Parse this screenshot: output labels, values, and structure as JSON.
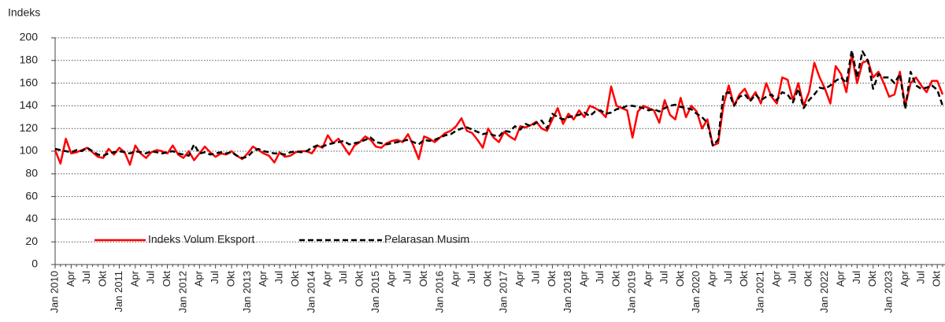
{
  "chart_data": {
    "type": "line",
    "y_label": "Indeks",
    "categories": [
      "Jan 2010",
      null,
      null,
      "Apr",
      null,
      null,
      "Jul",
      null,
      null,
      "Okt",
      null,
      null,
      "Jan 2011",
      null,
      null,
      "Apr",
      null,
      null,
      "Jul",
      null,
      null,
      "Okt",
      null,
      null,
      "Jan 2012",
      null,
      null,
      "Apr",
      null,
      null,
      "Jul",
      null,
      null,
      "Okt",
      null,
      null,
      "Jan 2013",
      null,
      null,
      "Apr",
      null,
      null,
      "Jul",
      null,
      null,
      "Okt",
      null,
      null,
      "Jan 2014",
      null,
      null,
      "Apr",
      null,
      null,
      "Jul",
      null,
      null,
      "Okt",
      null,
      null,
      "Jan 2015",
      null,
      null,
      "Apr",
      null,
      null,
      "Jul",
      null,
      null,
      "Okt",
      null,
      null,
      "Jan 2016",
      null,
      null,
      "Apr",
      null,
      null,
      "Jul",
      null,
      null,
      "Okt",
      null,
      null,
      "Jan 2017",
      null,
      null,
      "Apr",
      null,
      null,
      "Jul",
      null,
      null,
      "Okt",
      null,
      null,
      "Jan 2018",
      null,
      null,
      "Apr",
      null,
      null,
      "Jul",
      null,
      null,
      "Okt",
      null,
      null,
      "Jan 2019",
      null,
      null,
      "Apr",
      null,
      null,
      "Jul",
      null,
      null,
      "Okt",
      null,
      null,
      "Jan 2020",
      null,
      null,
      "Apr",
      null,
      null,
      "Jul",
      null,
      null,
      "Okt",
      null,
      null,
      "Jan 2021",
      null,
      null,
      "Apr",
      null,
      null,
      "Jul",
      null,
      null,
      "Okt",
      null,
      null,
      "Jan 2022",
      null,
      null,
      "Apr",
      null,
      null,
      "Jul",
      null,
      null,
      "Okt",
      null,
      null,
      "Jan 2023",
      null,
      null,
      "Apr",
      null,
      null,
      "Jul",
      null,
      null,
      "Okt",
      null
    ],
    "series": [
      {
        "name": "Indeks Volum Eksport",
        "color": "#ff0000",
        "dash": false,
        "values": [
          101,
          89,
          111,
          98,
          99,
          101,
          103,
          99,
          95,
          94,
          102,
          97,
          103,
          99,
          88,
          105,
          98,
          94,
          99,
          101,
          100,
          98,
          105,
          97,
          94,
          100,
          92,
          98,
          104,
          99,
          95,
          98,
          97,
          100,
          96,
          93,
          98,
          104,
          101,
          98,
          96,
          90,
          99,
          95,
          96,
          99,
          100,
          100,
          98,
          105,
          103,
          114,
          107,
          111,
          104,
          97,
          105,
          108,
          113,
          110,
          104,
          103,
          107,
          109,
          110,
          108,
          115,
          105,
          93,
          113,
          111,
          108,
          112,
          116,
          118,
          122,
          129,
          118,
          116,
          110,
          103,
          120,
          112,
          108,
          117,
          113,
          110,
          122,
          121,
          123,
          126,
          120,
          118,
          128,
          138,
          124,
          133,
          128,
          136,
          130,
          140,
          138,
          135,
          130,
          157,
          140,
          138,
          136,
          112,
          135,
          140,
          138,
          136,
          125,
          145,
          132,
          128,
          147,
          130,
          140,
          135,
          120,
          128,
          105,
          107,
          140,
          158,
          140,
          150,
          155,
          145,
          152,
          142,
          160,
          148,
          142,
          165,
          163,
          145,
          160,
          140,
          152,
          178,
          165,
          155,
          142,
          175,
          168,
          152,
          185,
          160,
          178,
          180,
          165,
          170,
          160,
          148,
          150,
          170,
          140,
          160,
          165,
          158,
          152,
          162,
          162,
          150
        ]
      },
      {
        "name": "Pelarasan Musim",
        "color": "#000000",
        "dash": true,
        "values": [
          102,
          101,
          100,
          99,
          101,
          100,
          103,
          100,
          97,
          96,
          98,
          99,
          100,
          99,
          98,
          100,
          99,
          98,
          100,
          99,
          98,
          99,
          100,
          98,
          97,
          96,
          106,
          98,
          99,
          97,
          98,
          99,
          98,
          99,
          96,
          94,
          95,
          100,
          102,
          100,
          99,
          98,
          98,
          97,
          99,
          100,
          99,
          100,
          103,
          105,
          104,
          106,
          107,
          108,
          109,
          106,
          107,
          108,
          110,
          112,
          108,
          107,
          106,
          107,
          108,
          109,
          110,
          108,
          106,
          110,
          109,
          110,
          112,
          114,
          115,
          118,
          120,
          121,
          119,
          117,
          115,
          116,
          114,
          113,
          118,
          117,
          122,
          119,
          124,
          122,
          125,
          127,
          120,
          133,
          130,
          128,
          130,
          131,
          132,
          134,
          131,
          135,
          136,
          133,
          134,
          137,
          138,
          140,
          140,
          139,
          138,
          136,
          137,
          135,
          138,
          140,
          141,
          139,
          138,
          137,
          133,
          130,
          125,
          105,
          110,
          150,
          152,
          140,
          148,
          150,
          144,
          150,
          145,
          148,
          150,
          145,
          152,
          150,
          143,
          155,
          138,
          145,
          150,
          156,
          155,
          158,
          162,
          165,
          160,
          189,
          165,
          188,
          180,
          155,
          168,
          165,
          165,
          160,
          168,
          137,
          170,
          158,
          155,
          156,
          158,
          154,
          140
        ]
      }
    ],
    "ylim": [
      0,
      200
    ],
    "yticks": [
      0,
      20,
      40,
      60,
      80,
      100,
      120,
      140,
      160,
      180,
      200
    ],
    "grid": true,
    "legend": "lower left"
  }
}
